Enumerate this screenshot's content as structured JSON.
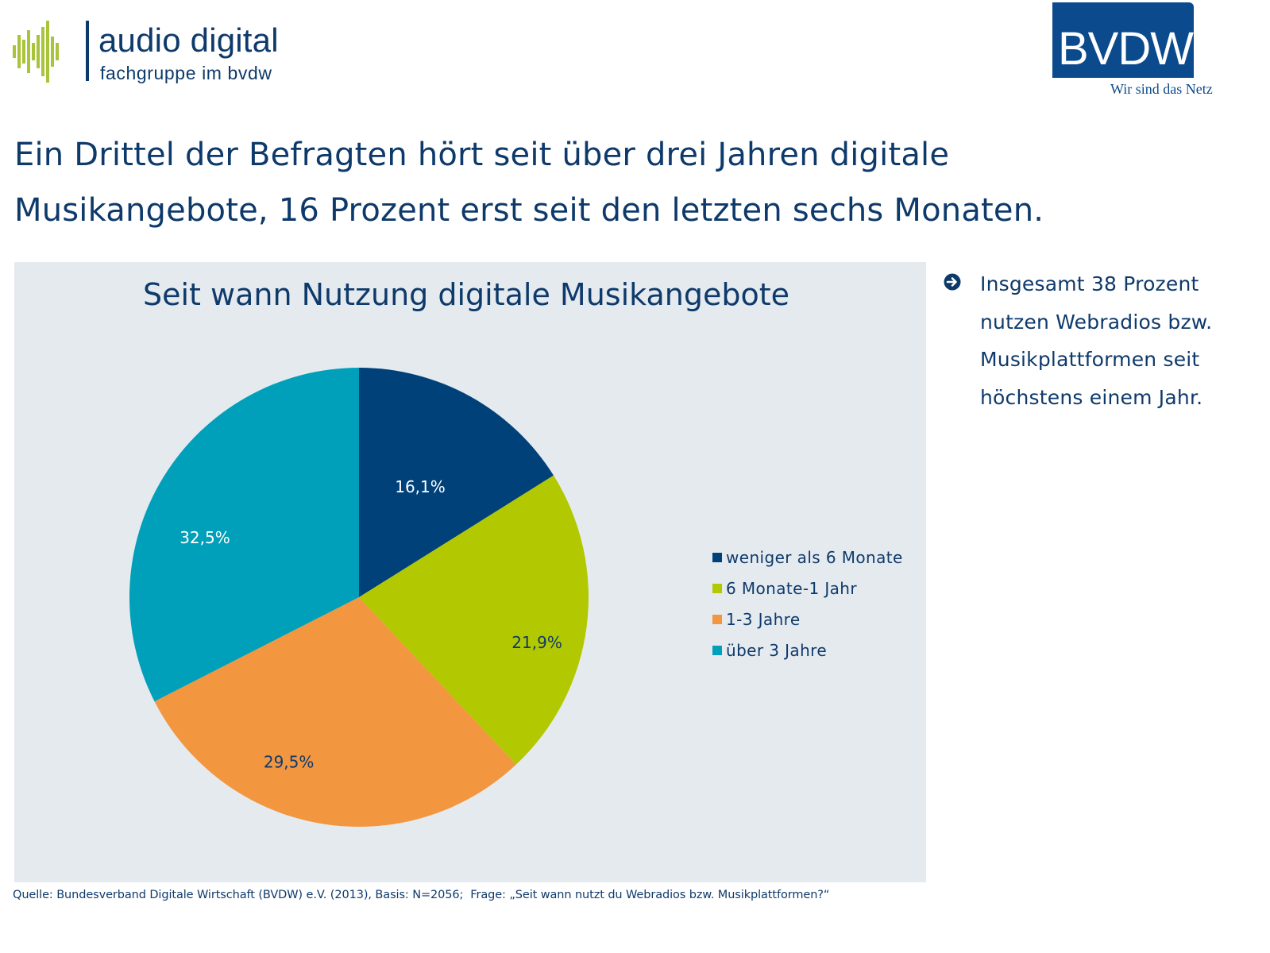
{
  "logos": {
    "left": {
      "brand": "audio digital",
      "subtitle": "fachgruppe im bvdw",
      "bar_color": "#a8c43a",
      "text_color": "#0e3a6b"
    },
    "right": {
      "brand": "BVDW",
      "tagline": "Wir sind das Netz",
      "box_color": "#0b4a8c"
    }
  },
  "headline": "Ein Drittel der Befragten hört seit über drei Jahren digitale Musikangebote, 16 Prozent erst seit den letzten sechs Monaten.",
  "side_note": {
    "icon": "arrow-circle-right-icon",
    "text": "Insgesamt 38 Prozent\nnutzen Webradios bzw.\nMusikplattformen seit\nhöchstens einem Jahr."
  },
  "source": "Quelle: Bundesverband Digitale Wirtschaft (BVDW) e.V. (2013), Basis: N=2056;  Frage: „Seit wann nutzt du Webradios bzw. Musikplattformen?“",
  "chart_data": {
    "type": "pie",
    "title": "Seit wann Nutzung digitale Musikangebote",
    "start": "12 o'clock",
    "direction": "clockwise",
    "legend_position": "right",
    "unit": "%",
    "slices": [
      {
        "label": "weniger als 6 Monate",
        "value": 16.1,
        "display": "16,1%",
        "color": "#00417a",
        "label_color": "#ffffff"
      },
      {
        "label": "6 Monate-1 Jahr",
        "value": 21.9,
        "display": "21,9%",
        "color": "#b2c800",
        "label_color": "#0e3a6b"
      },
      {
        "label": "1-3 Jahre",
        "value": 29.5,
        "display": "29,5%",
        "color": "#f29640",
        "label_color": "#0e3a6b"
      },
      {
        "label": "über 3 Jahre",
        "value": 32.5,
        "display": "32,5%",
        "color": "#00a0ba",
        "label_color": "#ffffff"
      }
    ]
  }
}
